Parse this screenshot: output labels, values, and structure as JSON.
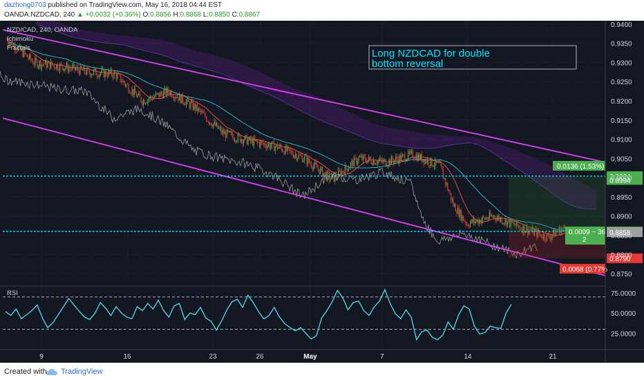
{
  "header": {
    "user": "dazhong0703",
    "published": "published on TradingView.com, May 16, 2018 04:44 EST",
    "symbol": "OANDA:NZDCAD, 240",
    "change": "▲ +0.0032 (+0.36%)",
    "open_label": "O:",
    "open": "0.8856",
    "high_label": "H:",
    "high": "0.8868",
    "low_label": "L:",
    "low": "0.8850",
    "close_label": "C:",
    "close": "0.8867"
  },
  "footer": {
    "created_with": "Created with",
    "brand": "TradingView"
  },
  "colors": {
    "background": "#131722",
    "grid": "#2a2e39",
    "up": "#4caf50",
    "down": "#e53935",
    "channel": "#e040fb",
    "cyan": "#00e5ff",
    "rsi": "#4dd0e1",
    "axis_text": "#d1d4dc"
  },
  "chart_data": {
    "type": "candlestick",
    "legend": [
      "NZD/CAD, 240, OANDA",
      "Ichimoku",
      "Fractals"
    ],
    "annotation": "Long NZDCAD for double bottom reversal",
    "ylim": [
      0.8725,
      0.9405
    ],
    "y_ticks": [
      "0.9400",
      "0.9350",
      "0.9300",
      "0.9250",
      "0.9200",
      "0.9150",
      "0.9100",
      "0.9050",
      "0.9000",
      "0.8950",
      "0.8900",
      "0.8850",
      "0.8800",
      "0.8750"
    ],
    "x_ticks": [
      "9",
      "16",
      "23",
      "26",
      "May",
      "7",
      "14",
      "21"
    ],
    "price_labels": [
      {
        "text": "0.9004",
        "value": 0.9004,
        "color": "#4caf50"
      },
      {
        "text": "0.8994",
        "value": 0.8994,
        "color": "#4caf50"
      },
      {
        "text": "0.8860",
        "value": 0.886,
        "color": "#4caf50"
      },
      {
        "text": "0.8858",
        "value": 0.8858,
        "color": "#9e9e9e"
      },
      {
        "text": "0.8790",
        "value": 0.879,
        "color": "#e53935"
      }
    ],
    "hlines": [
      0.9004,
      0.886
    ],
    "trade_labels": {
      "target": "0.0136 (1.53%)",
      "ratio": "0.0009 ~ 36",
      "ratio_sub": "2",
      "stop": "0.0068 (0.77%"
    },
    "price_path": [
      [
        0,
        0.936
      ],
      [
        4,
        0.93
      ],
      [
        8,
        0.929
      ],
      [
        12,
        0.9275
      ],
      [
        16,
        0.927
      ],
      [
        20,
        0.92
      ],
      [
        24,
        0.9225
      ],
      [
        28,
        0.918
      ],
      [
        32,
        0.9115
      ],
      [
        36,
        0.9095
      ],
      [
        40,
        0.908
      ],
      [
        44,
        0.905
      ],
      [
        48,
        0.8995
      ],
      [
        52,
        0.905
      ],
      [
        56,
        0.904
      ],
      [
        60,
        0.906
      ],
      [
        64,
        0.903
      ],
      [
        66,
        0.893
      ],
      [
        68,
        0.888
      ],
      [
        72,
        0.89
      ],
      [
        76,
        0.887
      ],
      [
        80,
        0.8845
      ],
      [
        82,
        0.8866
      ]
    ],
    "channel_upper": [
      [
        0.9385,
        0.904
      ]
    ],
    "channel_lower": [
      [
        0.9155,
        0.8745
      ]
    ],
    "rsi": {
      "label": "RSI",
      "y_ticks": [
        "75.0000",
        "50.0000",
        "25.0000"
      ],
      "bands": [
        70,
        30
      ],
      "values": [
        52,
        47,
        55,
        43,
        48,
        53,
        60,
        44,
        32,
        38,
        48,
        58,
        68,
        60,
        52,
        45,
        42,
        50,
        63,
        56,
        47,
        58,
        50,
        45,
        43,
        58,
        53,
        62,
        55,
        66,
        53,
        45,
        59,
        62,
        42,
        50,
        48,
        57,
        44,
        40,
        29,
        40,
        54,
        64,
        67,
        57,
        72,
        63,
        52,
        43,
        47,
        57,
        45,
        37,
        32,
        28,
        32,
        25,
        18,
        22,
        44,
        53,
        64,
        78,
        69,
        54,
        63,
        65,
        53,
        47,
        58,
        65,
        79,
        62,
        49,
        43,
        54,
        45,
        17,
        27,
        29,
        20,
        17,
        23,
        39,
        30,
        48,
        59,
        55,
        34,
        24,
        26,
        34,
        32,
        31,
        50,
        61
      ]
    }
  }
}
